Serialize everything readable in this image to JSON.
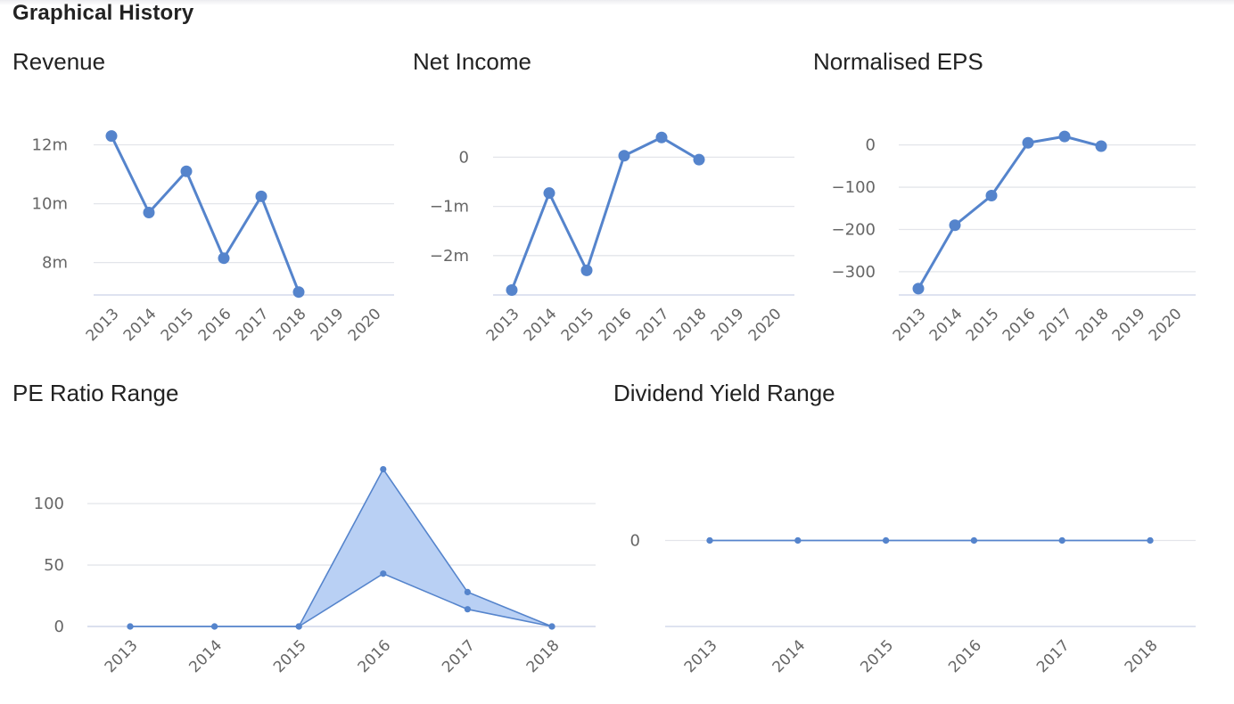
{
  "section_title": "Graphical History",
  "colors": {
    "series": "#5584cc",
    "range_fill": "#b9d0f4",
    "gridline": "#e3e5ea",
    "axis_line": "#c9d2e6",
    "label": "#666666"
  },
  "chart_data": [
    {
      "id": "revenue",
      "type": "line",
      "title": "Revenue",
      "categories": [
        "2013",
        "2014",
        "2015",
        "2016",
        "2017",
        "2018",
        "2019",
        "2020"
      ],
      "values": [
        12.3,
        9.7,
        11.1,
        8.15,
        10.25,
        7.0,
        null,
        null
      ],
      "value_unit": "m",
      "yticks": [
        8,
        10,
        12
      ],
      "ytick_labels": [
        "8m",
        "10m",
        "12m"
      ],
      "ylim": [
        6.9,
        12.5
      ],
      "grid": true
    },
    {
      "id": "net-income",
      "type": "line",
      "title": "Net Income",
      "categories": [
        "2013",
        "2014",
        "2015",
        "2016",
        "2017",
        "2018",
        "2019",
        "2020"
      ],
      "values": [
        -2.7,
        -0.73,
        -2.3,
        0.03,
        0.4,
        -0.05,
        null,
        null
      ],
      "value_unit": "m",
      "yticks": [
        -2,
        -1,
        0
      ],
      "ytick_labels": [
        "−2m",
        "−1m",
        "0"
      ],
      "ylim": [
        -2.8,
        0.55
      ],
      "grid": true
    },
    {
      "id": "normalised-eps",
      "type": "line",
      "title": "Normalised EPS",
      "categories": [
        "2013",
        "2014",
        "2015",
        "2016",
        "2017",
        "2018",
        "2019",
        "2020"
      ],
      "values": [
        -340,
        -190,
        -120,
        5,
        20,
        -3,
        null,
        null
      ],
      "yticks": [
        -300,
        -200,
        -100,
        0
      ],
      "ytick_labels": [
        "−300",
        "−200",
        "−100",
        "0"
      ],
      "ylim": [
        -355,
        35
      ],
      "grid": true
    },
    {
      "id": "pe-ratio-range",
      "type": "area",
      "title": "PE Ratio Range",
      "categories": [
        "2013",
        "2014",
        "2015",
        "2016",
        "2017",
        "2018"
      ],
      "series": [
        {
          "values": [
            0,
            0,
            0,
            128,
            28,
            0
          ]
        },
        {
          "values": [
            0,
            0,
            0,
            43,
            14,
            0
          ]
        }
      ],
      "yticks": [
        0,
        50,
        100
      ],
      "ytick_labels": [
        "0",
        "50",
        "100"
      ],
      "ylim": [
        0,
        140
      ],
      "grid": true
    },
    {
      "id": "dividend-yield-range",
      "type": "area",
      "title": "Dividend Yield Range",
      "categories": [
        "2013",
        "2014",
        "2015",
        "2016",
        "2017",
        "2018"
      ],
      "series": [
        {
          "values": [
            0,
            0,
            0,
            0,
            0,
            0
          ]
        },
        {
          "values": [
            0,
            0,
            0,
            0,
            0,
            0
          ]
        }
      ],
      "yticks": [
        0
      ],
      "ytick_labels": [
        "0"
      ],
      "ylim": [
        -1,
        1
      ],
      "grid": true
    }
  ]
}
